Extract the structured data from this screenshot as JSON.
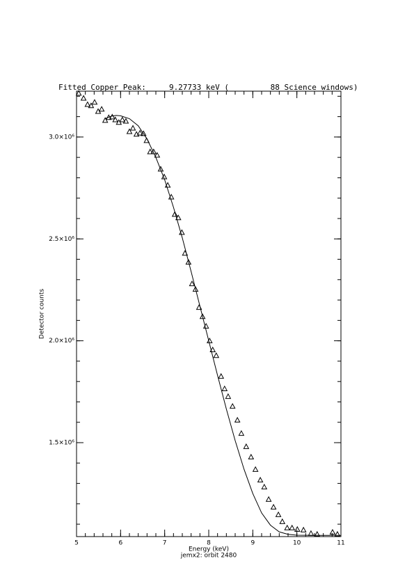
{
  "chart_data": {
    "type": "scatter",
    "title": "Fitted Copper Peak:     9.27733 keV (         88 Science windows)",
    "x_label": "Energy (keV)",
    "subtitle": "jemx2: orbit 2480",
    "y_label": "Detector counts",
    "xlim": [
      5,
      11
    ],
    "ylim": [
      1039000,
      3225000
    ],
    "xticks": [
      5,
      6,
      7,
      8,
      9,
      10,
      11
    ],
    "yticks": [
      {
        "value": 1500000,
        "label": "1.5×10⁶"
      },
      {
        "value": 2000000,
        "label": "2.0×10⁶"
      },
      {
        "value": 2500000,
        "label": "2.5×10⁶"
      },
      {
        "value": 3000000,
        "label": "3.0×10⁶"
      }
    ],
    "xminor": 0.2,
    "yminor": 100000,
    "series": [
      {
        "style": "triangle",
        "color": "#000000",
        "x": [
          5.05,
          5.16,
          5.25,
          5.33,
          5.41,
          5.49,
          5.57,
          5.65,
          5.73,
          5.81,
          5.88,
          5.96,
          6.04,
          6.12,
          6.2,
          6.28,
          6.36,
          6.44,
          6.52,
          6.59,
          6.67,
          6.75,
          6.83,
          6.91,
          6.99,
          7.07,
          7.15,
          7.23,
          7.31,
          7.39,
          7.46,
          7.54,
          7.62,
          7.7,
          7.78,
          7.86,
          7.94,
          8.02,
          8.09,
          8.17,
          8.28,
          8.36,
          8.44,
          8.54,
          8.65,
          8.74,
          8.85,
          8.96,
          9.06,
          9.17,
          9.26,
          9.36,
          9.47,
          9.58,
          9.67,
          9.78,
          9.89,
          10.01,
          10.15,
          10.32,
          10.46,
          10.81,
          10.92
        ],
        "values": [
          3215000,
          3191000,
          3160000,
          3154000,
          3171000,
          3126000,
          3137000,
          3082000,
          3096000,
          3099000,
          3085000,
          3072000,
          3085000,
          3078000,
          3027000,
          3044000,
          3014000,
          3020000,
          3017000,
          2983000,
          2928000,
          2928000,
          2911000,
          2843000,
          2805000,
          2764000,
          2706000,
          2621000,
          2604000,
          2532000,
          2430000,
          2386000,
          2280000,
          2253000,
          2164000,
          2119000,
          2072000,
          2000000,
          1956000,
          1928000,
          1826000,
          1765000,
          1727000,
          1679000,
          1611000,
          1546000,
          1481000,
          1430000,
          1369000,
          1317000,
          1283000,
          1222000,
          1184000,
          1147000,
          1113000,
          1082000,
          1082000,
          1075000,
          1072000,
          1055000,
          1051000,
          1061000,
          1051000
        ]
      },
      {
        "style": "line",
        "color": "#000000",
        "x": [
          5.65,
          5.8,
          5.9,
          6.0,
          6.2,
          6.4,
          6.6,
          6.8,
          7.0,
          7.2,
          7.4,
          7.6,
          7.8,
          8.0,
          8.2,
          8.4,
          8.6,
          8.8,
          9.0,
          9.2,
          9.4,
          9.6,
          9.8,
          10.0,
          10.5,
          11.0
        ],
        "values": [
          3090000,
          3103000,
          3106000,
          3104000,
          3090000,
          3055000,
          2990000,
          2900000,
          2790000,
          2655000,
          2505000,
          2340000,
          2170000,
          2000000,
          1830000,
          1665000,
          1510000,
          1370000,
          1250000,
          1155000,
          1095000,
          1062000,
          1050000,
          1046000,
          1045000,
          1045000
        ]
      }
    ]
  }
}
